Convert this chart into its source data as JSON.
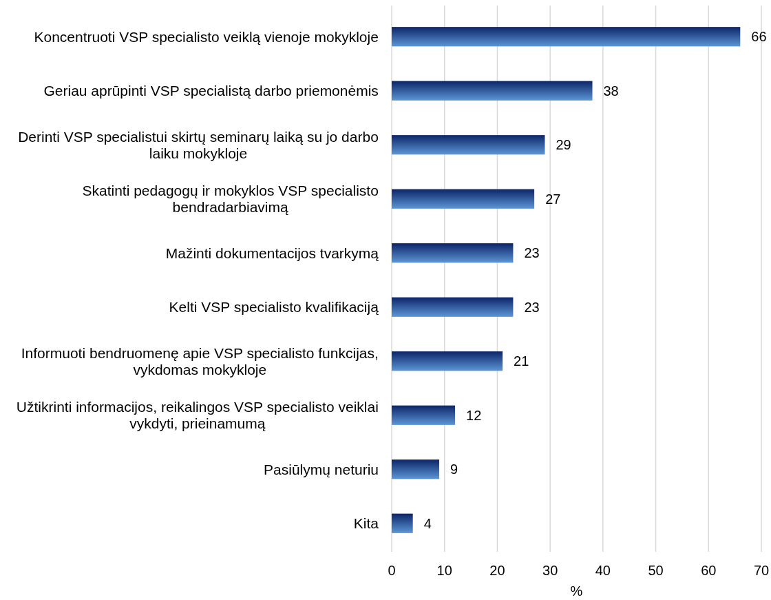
{
  "chart_data": {
    "type": "bar",
    "orientation": "horizontal",
    "categories": [
      "Koncentruoti VSP specialisto veiklą vienoje mokykloje",
      "Geriau aprūpinti VSP specialistą darbo priemonėmis",
      "Derinti VSP specialistui skirtų seminarų laiką su jo darbo laiku mokykloje",
      "Skatinti pedagogų ir mokyklos VSP specialisto bendradarbiavimą",
      "Mažinti dokumentacijos tvarkymą",
      "Kelti VSP specialisto kvalifikaciją",
      "Informuoti bendruomenę apie VSP specialisto funkcijas, vykdomas mokykloje",
      "Užtikrinti informacijos, reikalingos VSP specialisto veiklai vykdyti, prieinamumą",
      "Pasiūlymų neturiu",
      "Kita"
    ],
    "values": [
      66,
      38,
      29,
      27,
      23,
      23,
      21,
      12,
      9,
      4
    ],
    "color": "#2f63b0",
    "xlabel": "%",
    "xlim": [
      0,
      70
    ],
    "xticks": [
      0,
      10,
      20,
      30,
      40,
      50,
      60,
      70
    ],
    "grid": "x",
    "data_labels": true
  }
}
